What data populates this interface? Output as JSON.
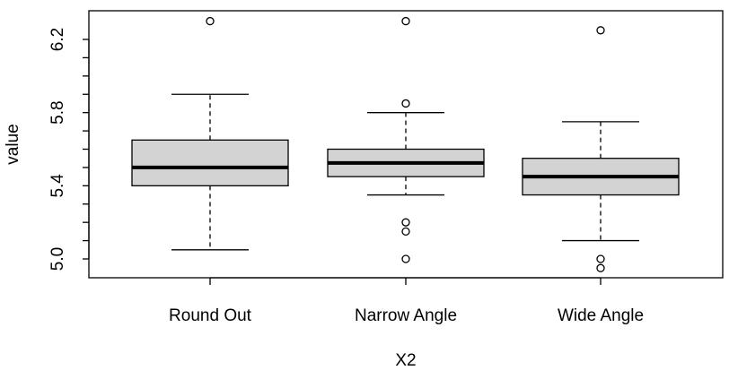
{
  "chart_data": {
    "type": "boxplot",
    "xlabel": "X2",
    "ylabel": "value",
    "categories": [
      "Round Out",
      "Narrow Angle",
      "Wide Angle"
    ],
    "yticks": [
      5.0,
      5.4,
      5.8,
      6.2
    ],
    "ytick_labels": [
      "5.0",
      "5.4",
      "5.8",
      "6.2"
    ],
    "ylim": [
      4.9,
      6.33
    ],
    "boxes": [
      {
        "category": "Round Out",
        "whisker_low": 5.05,
        "q1": 5.4,
        "median": 5.5,
        "q3": 5.65,
        "whisker_high": 5.9,
        "outliers": [
          6.3
        ]
      },
      {
        "category": "Narrow Angle",
        "whisker_low": 5.35,
        "q1": 5.45,
        "median": 5.525,
        "q3": 5.6,
        "whisker_high": 5.8,
        "outliers": [
          6.3,
          5.85,
          5.2,
          5.15,
          5.0
        ]
      },
      {
        "category": "Wide Angle",
        "whisker_low": 5.1,
        "q1": 5.35,
        "median": 5.45,
        "q3": 5.55,
        "whisker_high": 5.75,
        "outliers": [
          6.25,
          5.0,
          4.95
        ]
      }
    ],
    "box_fill": "#d3d3d3",
    "stroke_color": "#000000",
    "grid": false,
    "legend": "none"
  }
}
